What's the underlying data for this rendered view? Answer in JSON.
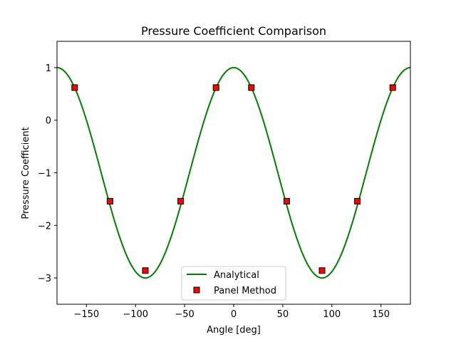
{
  "chart_data": {
    "type": "line",
    "title": "Pressure Coefficient Comparison",
    "xlabel": "Angle [deg]",
    "ylabel": "Pressure Coefficient",
    "xlim": [
      -180,
      180
    ],
    "ylim": [
      -3.5,
      1.5
    ],
    "xticks": [
      -150,
      -100,
      -50,
      0,
      50,
      100,
      150
    ],
    "xtick_labels": [
      "−150",
      "−100",
      "−50",
      "0",
      "50",
      "100",
      "150"
    ],
    "yticks": [
      1,
      0,
      -1,
      -2,
      -3
    ],
    "ytick_labels": [
      "1",
      "0",
      "−1",
      "−2",
      "−3"
    ],
    "grid": false,
    "legend_position": "lower center",
    "series": [
      {
        "name": "Analytical",
        "kind": "line",
        "color": "#008000",
        "formula": "1 - 4*sin(theta)^2",
        "x": [
          -180,
          -170,
          -160,
          -150,
          -140,
          -130,
          -120,
          -110,
          -100,
          -90,
          -80,
          -70,
          -60,
          -50,
          -40,
          -30,
          -20,
          -10,
          0,
          10,
          20,
          30,
          40,
          50,
          60,
          70,
          80,
          90,
          100,
          110,
          120,
          130,
          140,
          150,
          160,
          170,
          180
        ],
        "y": [
          1.0,
          0.879,
          0.532,
          0.0,
          -0.653,
          -1.347,
          -2.0,
          -2.532,
          -2.879,
          -3.0,
          -2.879,
          -2.532,
          -2.0,
          -1.347,
          -0.653,
          0.0,
          0.532,
          0.879,
          1.0,
          0.879,
          0.532,
          0.0,
          -0.653,
          -1.347,
          -2.0,
          -2.532,
          -2.879,
          -3.0,
          -2.879,
          -2.532,
          -2.0,
          -1.347,
          -0.653,
          0.0,
          0.532,
          0.879,
          1.0
        ]
      },
      {
        "name": "Panel Method",
        "kind": "scatter",
        "marker": "square",
        "color": "#ff0000",
        "edgecolor": "#000000",
        "x": [
          -162,
          -126,
          -90,
          -54,
          -18,
          18,
          54,
          90,
          126,
          162
        ],
        "y": [
          0.62,
          -1.54,
          -2.86,
          -1.54,
          0.62,
          0.62,
          -1.54,
          -2.86,
          -1.54,
          0.62
        ]
      }
    ]
  }
}
